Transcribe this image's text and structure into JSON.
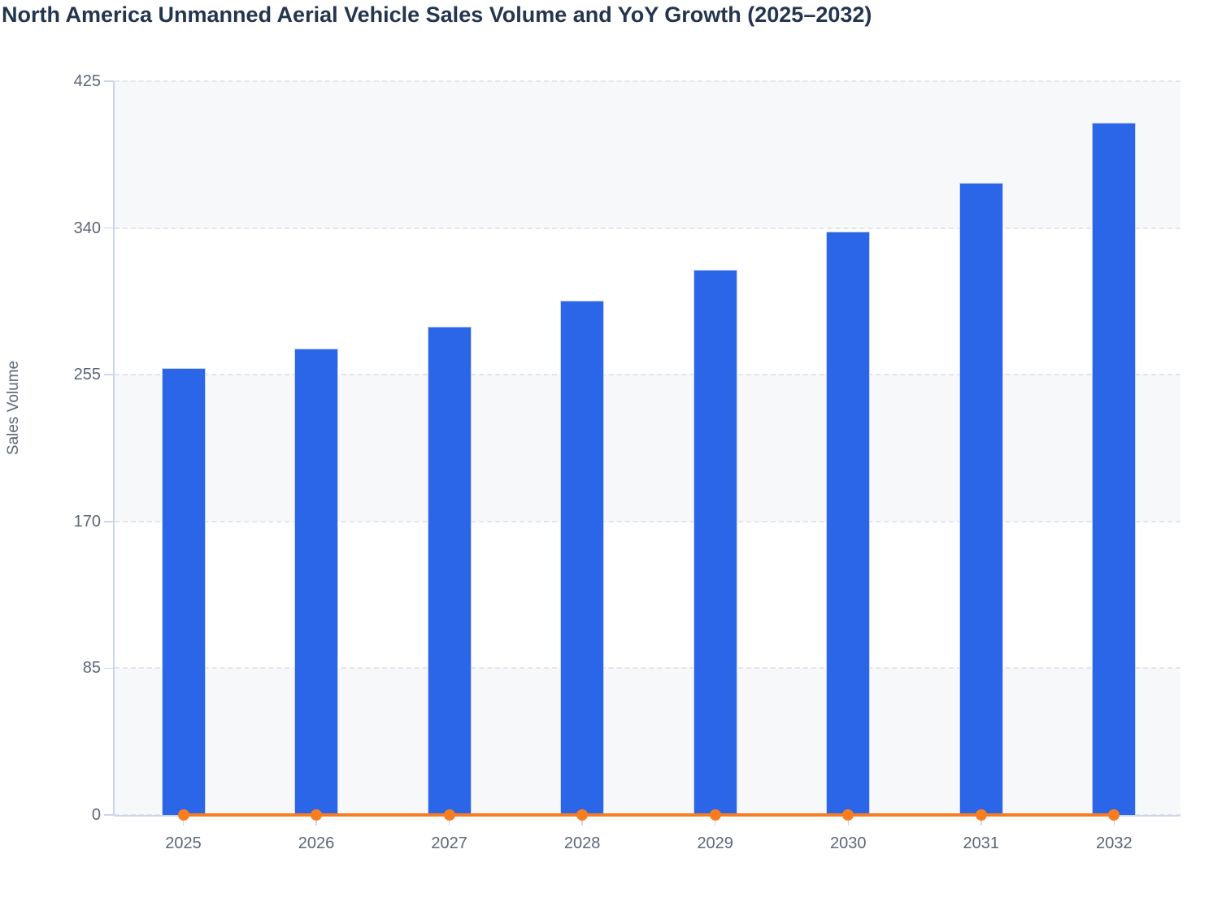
{
  "title": "North America Unmanned Aerial Vehicle Sales Volume and YoY Growth (2025–2032)",
  "chart_data": {
    "type": "bar",
    "title": "North America Unmanned Aerial Vehicle Sales Volume and YoY Growth (2025–2032)",
    "categories": [
      "2025",
      "2026",
      "2027",
      "2028",
      "2029",
      "2030",
      "2031",
      "2032"
    ],
    "series": [
      {
        "name": "Sales Volume",
        "type": "bar",
        "color": "#2b66e8",
        "values": [
          259,
          270,
          283,
          298,
          316,
          338,
          366,
          401
        ]
      },
      {
        "name": "YoY Growth",
        "type": "line",
        "color": "#f87d1f",
        "values": [
          0,
          0,
          0,
          0,
          0,
          0,
          0,
          0
        ],
        "note": "line renders flat at ~0 against the left axis, markers at every year"
      }
    ],
    "xlabel": "",
    "ylabel": "Sales Volume",
    "ylim": [
      0,
      425
    ],
    "yticks": [
      0,
      85,
      170,
      255,
      340,
      425
    ],
    "grid": "horizontal dashed gridlines",
    "plot_bands": "alternating horizontal bands (light gray / white) between gridlines",
    "legend": "none"
  },
  "colors": {
    "bar": "#2b66e8",
    "bar_border": "#c9d4f2",
    "line": "#f87d1f",
    "axis": "#ccd4ee",
    "grid": "#e3e5e9",
    "band": "#f7f8fa",
    "axis_text": "#5c6678",
    "title_text": "#24354f"
  }
}
